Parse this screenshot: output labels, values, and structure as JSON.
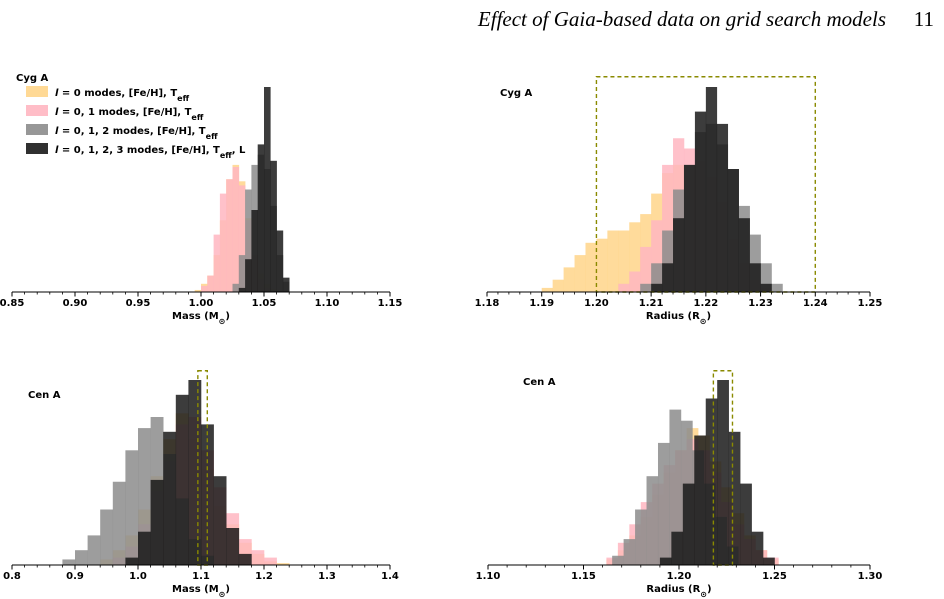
{
  "header": {
    "title": "Effect of Gaia-based data on grid search models",
    "page_number": "11"
  },
  "legend": [
    {
      "math": "l",
      "text": " = 0 modes, [Fe/H], T",
      "sub": "eff",
      "tail": "",
      "color": "#ffd58a"
    },
    {
      "math": "l",
      "text": " = 0, 1 modes, [Fe/H], T",
      "sub": "eff",
      "tail": "",
      "color": "#ffb6c1"
    },
    {
      "math": "l",
      "text": " = 0, 1, 2 modes, [Fe/H], T",
      "sub": "eff",
      "tail": "",
      "color": "#8c8c8c"
    },
    {
      "math": "l",
      "text": " = 0, 1, 2, 3 modes, [Fe/H], T",
      "sub": "eff",
      "tail": ", L",
      "color": "#1a1a1a"
    }
  ],
  "chart_data": [
    {
      "type": "histogram",
      "star": "Cyg A",
      "xlabel": "Mass (M",
      "xlabel_suffix": ")",
      "xlim": [
        0.85,
        1.15
      ],
      "ticks": [
        0.85,
        0.9,
        0.95,
        1.0,
        1.05,
        1.1,
        1.15
      ],
      "tick_labels": [
        "0.85",
        "0.90",
        "0.95",
        "1.00",
        "1.05",
        "1.10",
        "1.15"
      ],
      "bin_width": 0.005,
      "reference_box": null,
      "series": [
        {
          "color": "#ffd58a",
          "opacity": 0.85,
          "start": 0.995,
          "values": [
            0.01,
            0.04,
            0.08,
            0.18,
            0.35,
            0.55,
            0.62,
            0.54,
            0.36,
            0.18,
            0.09,
            0.04,
            0.015
          ]
        },
        {
          "color": "#ffb6c1",
          "opacity": 0.85,
          "start": 1.0,
          "values": [
            0.03,
            0.08,
            0.28,
            0.48,
            0.55,
            0.61,
            0.52,
            0.35,
            0.18,
            0.06,
            0.02
          ]
        },
        {
          "color": "#8c8c8c",
          "opacity": 0.85,
          "start": 1.025,
          "values": [
            0.04,
            0.18,
            0.5,
            0.62,
            0.67,
            0.6,
            0.42,
            0.18,
            0.05
          ]
        },
        {
          "color": "#1a1a1a",
          "opacity": 0.85,
          "start": 1.03,
          "values": [
            0.02,
            0.16,
            0.4,
            0.72,
            1.0,
            0.64,
            0.3,
            0.07
          ]
        }
      ]
    },
    {
      "type": "histogram",
      "star": "Cyg A",
      "xlabel": "Radius (R",
      "xlabel_suffix": ")",
      "xlim": [
        1.18,
        1.25
      ],
      "ticks": [
        1.18,
        1.19,
        1.2,
        1.21,
        1.22,
        1.23,
        1.24,
        1.25
      ],
      "tick_labels": [
        "1.18",
        "1.19",
        "1.20",
        "1.21",
        "1.22",
        "1.23",
        "1.24",
        "1.25"
      ],
      "bin_width": 0.002,
      "reference_box": {
        "x0": 1.2,
        "x1": 1.24,
        "top": 1.05
      },
      "series": [
        {
          "color": "#ffd58a",
          "opacity": 0.85,
          "start": 1.19,
          "values": [
            0.02,
            0.06,
            0.12,
            0.18,
            0.24,
            0.26,
            0.3,
            0.3,
            0.34,
            0.38,
            0.48,
            0.58,
            0.62,
            0.55,
            0.42,
            0.28,
            0.16,
            0.08,
            0.03
          ]
        },
        {
          "color": "#ffb6c1",
          "opacity": 0.85,
          "start": 1.204,
          "values": [
            0.04,
            0.1,
            0.22,
            0.35,
            0.62,
            0.75,
            0.7,
            0.64,
            0.56,
            0.44,
            0.26,
            0.14,
            0.06,
            0.02
          ]
        },
        {
          "color": "#8c8c8c",
          "opacity": 0.85,
          "start": 1.208,
          "values": [
            0.04,
            0.14,
            0.3,
            0.5,
            0.62,
            0.78,
            0.82,
            0.72,
            0.6,
            0.42,
            0.28,
            0.14,
            0.04
          ]
        },
        {
          "color": "#1a1a1a",
          "opacity": 0.85,
          "start": 1.21,
          "values": [
            0.04,
            0.14,
            0.36,
            0.62,
            0.88,
            1.0,
            0.82,
            0.6,
            0.36,
            0.14,
            0.04
          ]
        }
      ]
    },
    {
      "type": "histogram",
      "star": "Cen A",
      "xlabel": "Mass (M",
      "xlabel_suffix": ")",
      "xlim": [
        0.8,
        1.4
      ],
      "ticks": [
        0.8,
        0.9,
        1.0,
        1.1,
        1.2,
        1.3,
        1.4
      ],
      "tick_labels": [
        "0.8",
        "0.9",
        "1.0",
        "1.1",
        "1.2",
        "1.3",
        "1.4"
      ],
      "bin_width": 0.02,
      "reference_box": {
        "x0": 1.095,
        "x1": 1.11,
        "top": 1.05
      },
      "series": [
        {
          "color": "#ffd58a",
          "opacity": 0.85,
          "start": 0.94,
          "values": [
            0.03,
            0.08,
            0.16,
            0.3,
            0.48,
            0.68,
            0.82,
            0.68,
            0.52,
            0.32,
            0.22,
            0.12,
            0.06,
            0.02,
            0.01
          ]
        },
        {
          "color": "#ffb6c1",
          "opacity": 0.85,
          "start": 0.96,
          "values": [
            0.04,
            0.1,
            0.22,
            0.4,
            0.56,
            0.76,
            0.8,
            0.62,
            0.42,
            0.28,
            0.14,
            0.08,
            0.04
          ]
        },
        {
          "color": "#8c8c8c",
          "opacity": 0.85,
          "start": 0.88,
          "values": [
            0.03,
            0.08,
            0.16,
            0.3,
            0.45,
            0.62,
            0.74,
            0.8,
            0.6,
            0.36,
            0.14,
            0.05
          ]
        },
        {
          "color": "#1a1a1a",
          "opacity": 0.85,
          "start": 0.98,
          "values": [
            0.04,
            0.18,
            0.46,
            0.72,
            0.92,
            1.0,
            0.76,
            0.48,
            0.2,
            0.06
          ]
        }
      ]
    },
    {
      "type": "histogram",
      "star": "Cen A",
      "xlabel": "Radius (R",
      "xlabel_suffix": ")",
      "xlim": [
        1.1,
        1.3
      ],
      "ticks": [
        1.1,
        1.15,
        1.2,
        1.25,
        1.3
      ],
      "tick_labels": [
        "1.10",
        "1.15",
        "1.20",
        "1.25",
        "1.30"
      ],
      "bin_width": 0.006,
      "reference_box": {
        "x0": 1.218,
        "x1": 1.228,
        "top": 1.05
      },
      "series": [
        {
          "color": "#ffd58a",
          "opacity": 0.85,
          "start": 1.162,
          "values": [
            0.03,
            0.08,
            0.16,
            0.26,
            0.38,
            0.5,
            0.62,
            0.74,
            0.7,
            0.56,
            0.42,
            0.28,
            0.16,
            0.08,
            0.03
          ]
        },
        {
          "color": "#ffb6c1",
          "opacity": 0.85,
          "start": 1.162,
          "values": [
            0.04,
            0.12,
            0.22,
            0.34,
            0.44,
            0.54,
            0.62,
            0.68,
            0.62,
            0.5,
            0.34,
            0.22,
            0.14,
            0.08,
            0.04
          ]
        },
        {
          "color": "#8c8c8c",
          "opacity": 0.85,
          "start": 1.165,
          "values": [
            0.05,
            0.14,
            0.3,
            0.48,
            0.66,
            0.84,
            0.78,
            0.62,
            0.44,
            0.26,
            0.1
          ]
        },
        {
          "color": "#1a1a1a",
          "opacity": 0.85,
          "start": 1.19,
          "values": [
            0.04,
            0.18,
            0.44,
            0.7,
            0.9,
            1.0,
            0.72,
            0.44,
            0.18,
            0.04
          ]
        }
      ]
    }
  ]
}
